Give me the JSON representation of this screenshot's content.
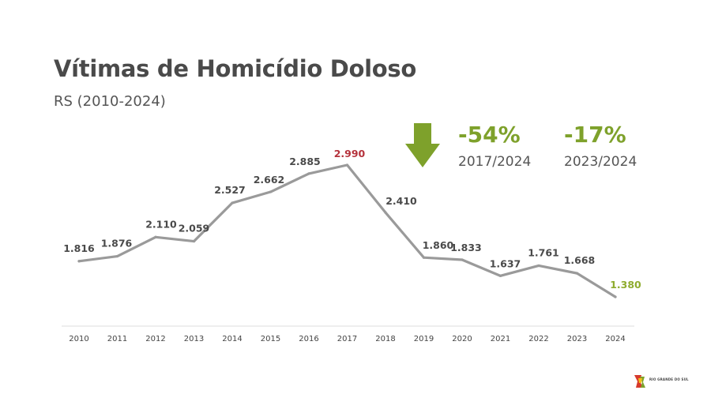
{
  "header": {
    "title": "Vítimas de Homicídio Doloso",
    "subtitle": "RS (2010-2024)"
  },
  "stats": [
    {
      "value": "-54%",
      "period": "2017/2024"
    },
    {
      "value": "-17%",
      "period": "2023/2024"
    }
  ],
  "colors": {
    "line": "#9a9a9a",
    "label": "#4a4a4a",
    "peak": "#b5323c",
    "latest": "#8fac2f",
    "accent": "#7ea12b"
  },
  "icons": [
    "down-arrow-icon",
    "rio-grande-do-sul-logo"
  ],
  "logo_text": "RIO GRANDE DO SUL",
  "chart_data": {
    "type": "line",
    "title": "Vítimas de Homicídio Doloso",
    "subtitle": "RS (2010-2024)",
    "xlabel": "",
    "ylabel": "",
    "categories": [
      "2010",
      "2011",
      "2012",
      "2013",
      "2014",
      "2015",
      "2016",
      "2017",
      "2018",
      "2019",
      "2020",
      "2021",
      "2022",
      "2023",
      "2024"
    ],
    "values": [
      1816,
      1876,
      2110,
      2059,
      2527,
      2662,
      2885,
      2990,
      2410,
      1860,
      1833,
      1637,
      1761,
      1668,
      1380
    ],
    "labels": [
      "1.816",
      "1.876",
      "2.110",
      "2.059",
      "2.527",
      "2.662",
      "2.885",
      "2.990",
      "2.410",
      "1.860",
      "1.833",
      "1.637",
      "1.761",
      "1.668",
      "1.380"
    ],
    "grid": false,
    "legend": "none"
  }
}
